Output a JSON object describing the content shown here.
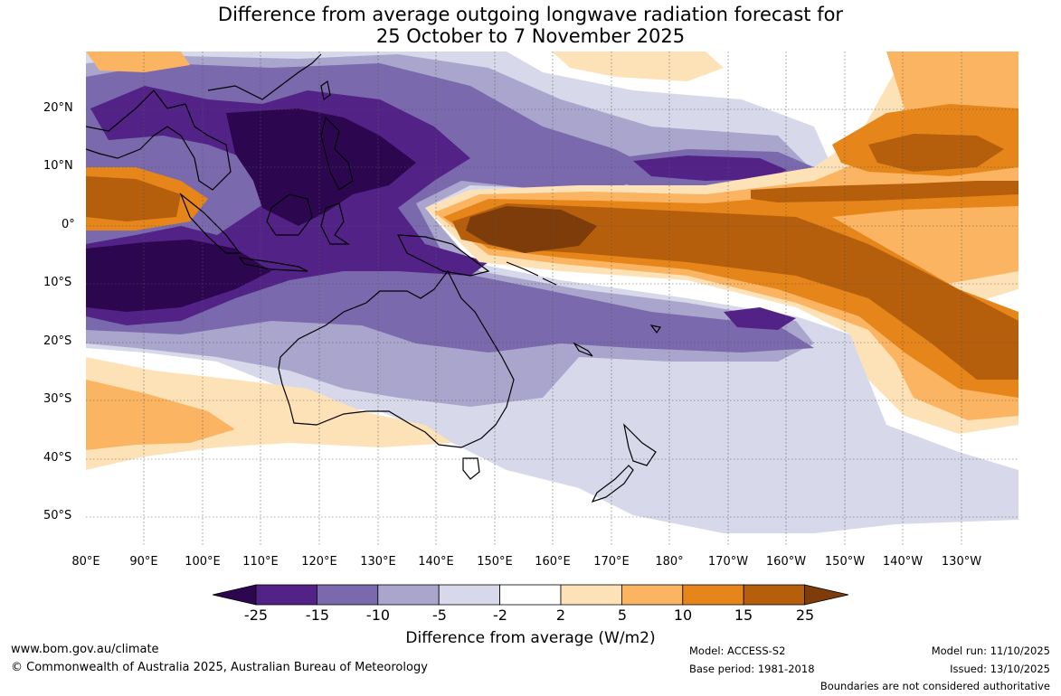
{
  "title_line1": "Difference from average outgoing longwave radiation forecast for",
  "title_line2": "25 October to 7 November 2025",
  "lat_labels": [
    "20°N",
    "10°N",
    "0°",
    "10°S",
    "20°S",
    "30°S",
    "40°S",
    "50°S"
  ],
  "lon_labels": [
    "80°E",
    "90°E",
    "100°E",
    "110°E",
    "120°E",
    "130°E",
    "140°E",
    "150°E",
    "160°E",
    "170°E",
    "180°",
    "170°W",
    "160°W",
    "150°W",
    "140°W",
    "130°W"
  ],
  "colorbar": {
    "ticks": [
      "-25",
      "-15",
      "-10",
      "-5",
      "-2",
      "2",
      "5",
      "10",
      "15",
      "25"
    ],
    "colors": [
      "#2d0650",
      "#522287",
      "#7a6aad",
      "#aaa5cd",
      "#d7d8e9",
      "#ffffff",
      "#fee2b7",
      "#fbb562",
      "#e68519",
      "#b55e0c",
      "#7d3c0a"
    ],
    "title": "Difference from average (W/m2)"
  },
  "footer": {
    "url": "www.bom.gov.au/climate",
    "copyright": "© Commonwealth of Australia 2025, Australian Bureau of Meteorology",
    "model": "Model: ACCESS-S2",
    "base_period": "Base period: 1981-2018",
    "model_run": "Model run: 11/10/2025",
    "issued": "Issued: 13/10/2025",
    "disclaimer": "Boundaries are not considered authoritative"
  }
}
